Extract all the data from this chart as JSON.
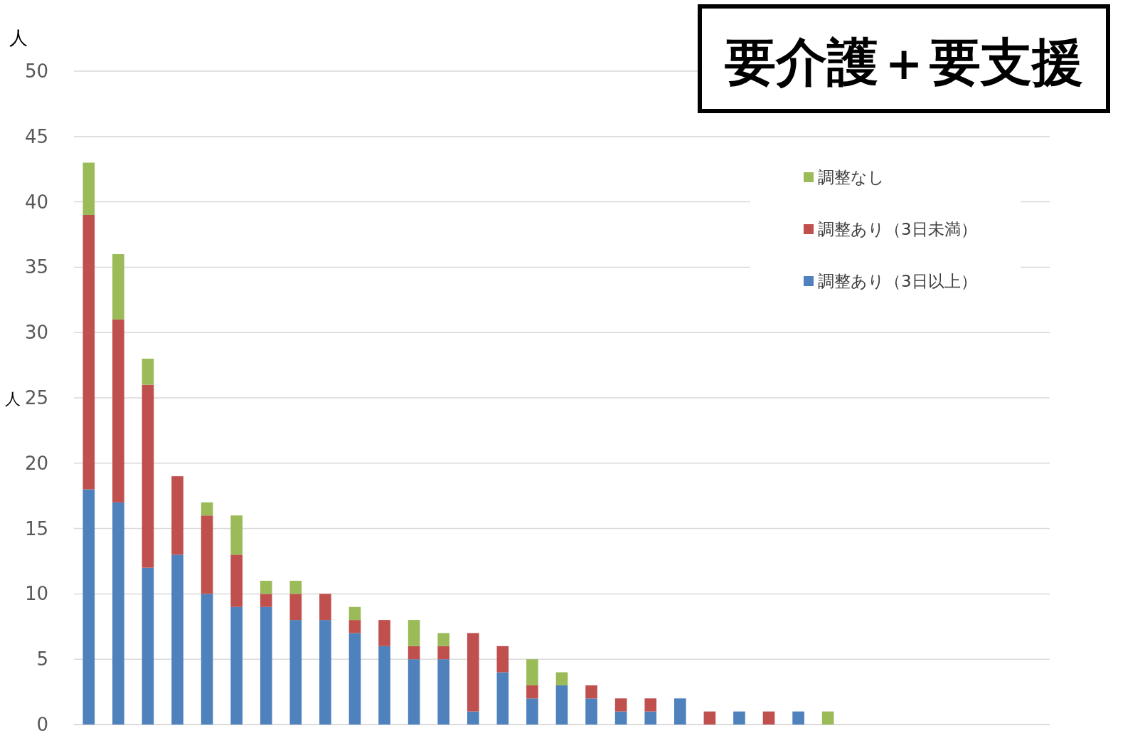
{
  "chart_data": {
    "type": "bar",
    "stacked": true,
    "title": "要介護＋要支援",
    "ylabel": "人",
    "annotations": [
      "人"
    ],
    "categories": [
      null,
      null,
      null,
      null,
      null,
      null,
      null,
      null,
      null,
      null,
      null,
      null,
      null,
      null,
      null,
      null,
      null,
      null,
      null,
      null,
      null,
      null,
      null,
      null,
      null,
      null,
      null,
      null,
      null,
      null,
      null,
      null,
      null
    ],
    "series": [
      {
        "name": "調整あり（3日以上）",
        "color": "#4f81bd",
        "values": [
          18,
          17,
          12,
          13,
          10,
          9,
          9,
          8,
          8,
          7,
          6,
          5,
          5,
          1,
          4,
          2,
          3,
          2,
          1,
          1,
          2,
          0,
          1,
          0,
          1,
          0,
          0,
          0,
          0,
          0,
          0,
          0,
          0
        ]
      },
      {
        "name": "調整あり（3日未満）",
        "color": "#c0504d",
        "values": [
          21,
          14,
          14,
          6,
          6,
          4,
          1,
          2,
          2,
          1,
          2,
          1,
          1,
          6,
          2,
          1,
          0,
          1,
          1,
          1,
          0,
          1,
          0,
          1,
          0,
          0,
          0,
          0,
          0,
          0,
          0,
          0,
          0
        ]
      },
      {
        "name": "調整なし",
        "color": "#9bbb59",
        "values": [
          4,
          5,
          2,
          0,
          1,
          3,
          1,
          1,
          0,
          1,
          0,
          2,
          1,
          0,
          0,
          2,
          1,
          0,
          0,
          0,
          0,
          0,
          0,
          0,
          0,
          1,
          0,
          0,
          0,
          0,
          0,
          0,
          0
        ]
      }
    ],
    "ylim": [
      0,
      50
    ],
    "yticks": [
      0,
      5,
      10,
      15,
      20,
      25,
      30,
      35,
      40,
      45,
      50
    ],
    "grid": "y",
    "legend": "right"
  }
}
